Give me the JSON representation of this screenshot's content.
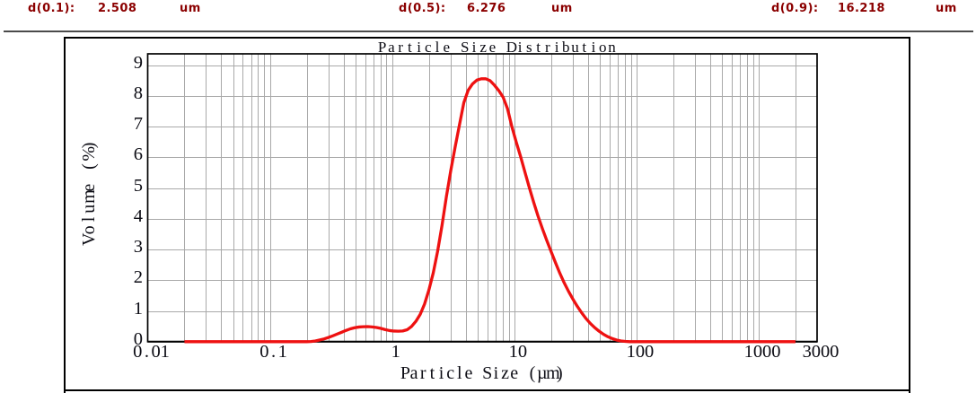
{
  "header": {
    "items": [
      {
        "label": "d(0.1):",
        "value": "2.508",
        "unit": "um"
      },
      {
        "label": "d(0.5):",
        "value": "6.276",
        "unit": "um"
      },
      {
        "label": "d(0.9):",
        "value": "16.218",
        "unit": "um"
      }
    ],
    "text_color": "#8b0000"
  },
  "chart_data": {
    "type": "line",
    "title": "Particle Size Distribution",
    "xlabel": "Particle Size (µm)",
    "ylabel": "Volume (%)",
    "x_scale": "log",
    "x_min": 0.01,
    "x_max": 3000,
    "y_min": 0,
    "y_max": 9.37,
    "y_ticks": [
      0,
      1,
      2,
      3,
      4,
      5,
      6,
      7,
      8,
      9
    ],
    "x_ticks": [
      {
        "value": 0.01,
        "label": "0.01"
      },
      {
        "value": 0.1,
        "label": "0.1"
      },
      {
        "value": 1,
        "label": "1"
      },
      {
        "value": 10,
        "label": "10"
      },
      {
        "value": 100,
        "label": "100"
      },
      {
        "value": 1000,
        "label": "1000"
      },
      {
        "value": 3000,
        "label": "3000"
      }
    ],
    "grid": true,
    "legend": null,
    "line_color": "#ee1111",
    "grid_color": "#a9a9a9",
    "axis_color": "#000000",
    "series": [
      {
        "name": "Volume (%)",
        "points": [
          [
            0.02,
            0.0
          ],
          [
            0.03557,
            0.0
          ],
          [
            0.06325,
            0.0
          ],
          [
            0.1125,
            0.0
          ],
          [
            0.2,
            0.0
          ],
          [
            0.2171,
            0.006
          ],
          [
            0.2358,
            0.024
          ],
          [
            0.256,
            0.056
          ],
          [
            0.2779,
            0.091
          ],
          [
            0.3017,
            0.138
          ],
          [
            0.3276,
            0.192
          ],
          [
            0.3557,
            0.249
          ],
          [
            0.3861,
            0.307
          ],
          [
            0.4192,
            0.366
          ],
          [
            0.4552,
            0.418
          ],
          [
            0.4942,
            0.455
          ],
          [
            0.5365,
            0.478
          ],
          [
            0.5825,
            0.487
          ],
          [
            0.6325,
            0.49
          ],
          [
            0.6867,
            0.481
          ],
          [
            0.7455,
            0.463
          ],
          [
            0.8094,
            0.433
          ],
          [
            0.8788,
            0.392
          ],
          [
            0.9541,
            0.361
          ],
          [
            1.036,
            0.346
          ],
          [
            1.125,
            0.34
          ],
          [
            1.221,
            0.348
          ],
          [
            1.326,
            0.388
          ],
          [
            1.439,
            0.494
          ],
          [
            1.563,
            0.66
          ],
          [
            1.697,
            0.889
          ],
          [
            1.842,
            1.226
          ],
          [
            2.0,
            1.685
          ],
          [
            2.171,
            2.242
          ],
          [
            2.358,
            2.951
          ],
          [
            2.56,
            3.788
          ],
          [
            2.779,
            4.722
          ],
          [
            3.017,
            5.566
          ],
          [
            3.276,
            6.334
          ],
          [
            3.557,
            7.065
          ],
          [
            3.861,
            7.783
          ],
          [
            4.192,
            8.188
          ],
          [
            4.552,
            8.396
          ],
          [
            4.942,
            8.519
          ],
          [
            5.365,
            8.561
          ],
          [
            5.825,
            8.563
          ],
          [
            6.325,
            8.501
          ],
          [
            6.867,
            8.354
          ],
          [
            7.455,
            8.179
          ],
          [
            8.094,
            7.962
          ],
          [
            8.788,
            7.59
          ],
          [
            9.541,
            7.006
          ],
          [
            10.36,
            6.502
          ],
          [
            11.25,
            6.028
          ],
          [
            12.21,
            5.521
          ],
          [
            13.26,
            5.019
          ],
          [
            14.39,
            4.541
          ],
          [
            15.63,
            4.089
          ],
          [
            16.97,
            3.68
          ],
          [
            18.42,
            3.299
          ],
          [
            20.0,
            2.933
          ],
          [
            21.71,
            2.572
          ],
          [
            23.58,
            2.227
          ],
          [
            25.6,
            1.915
          ],
          [
            27.79,
            1.636
          ],
          [
            30.17,
            1.383
          ],
          [
            32.76,
            1.149
          ],
          [
            35.57,
            0.94
          ],
          [
            38.61,
            0.752
          ],
          [
            41.92,
            0.592
          ],
          [
            45.52,
            0.456
          ],
          [
            49.42,
            0.34
          ],
          [
            53.65,
            0.241
          ],
          [
            58.25,
            0.161
          ],
          [
            63.25,
            0.1
          ],
          [
            68.67,
            0.054
          ],
          [
            74.55,
            0.024
          ],
          [
            80.94,
            0.008
          ],
          [
            87.88,
            0.0
          ],
          [
            95.0,
            0.0
          ],
          [
            300.4,
            0.0
          ],
          [
            950.0,
            0.0
          ],
          [
            1995.0,
            0.0
          ]
        ]
      }
    ]
  }
}
